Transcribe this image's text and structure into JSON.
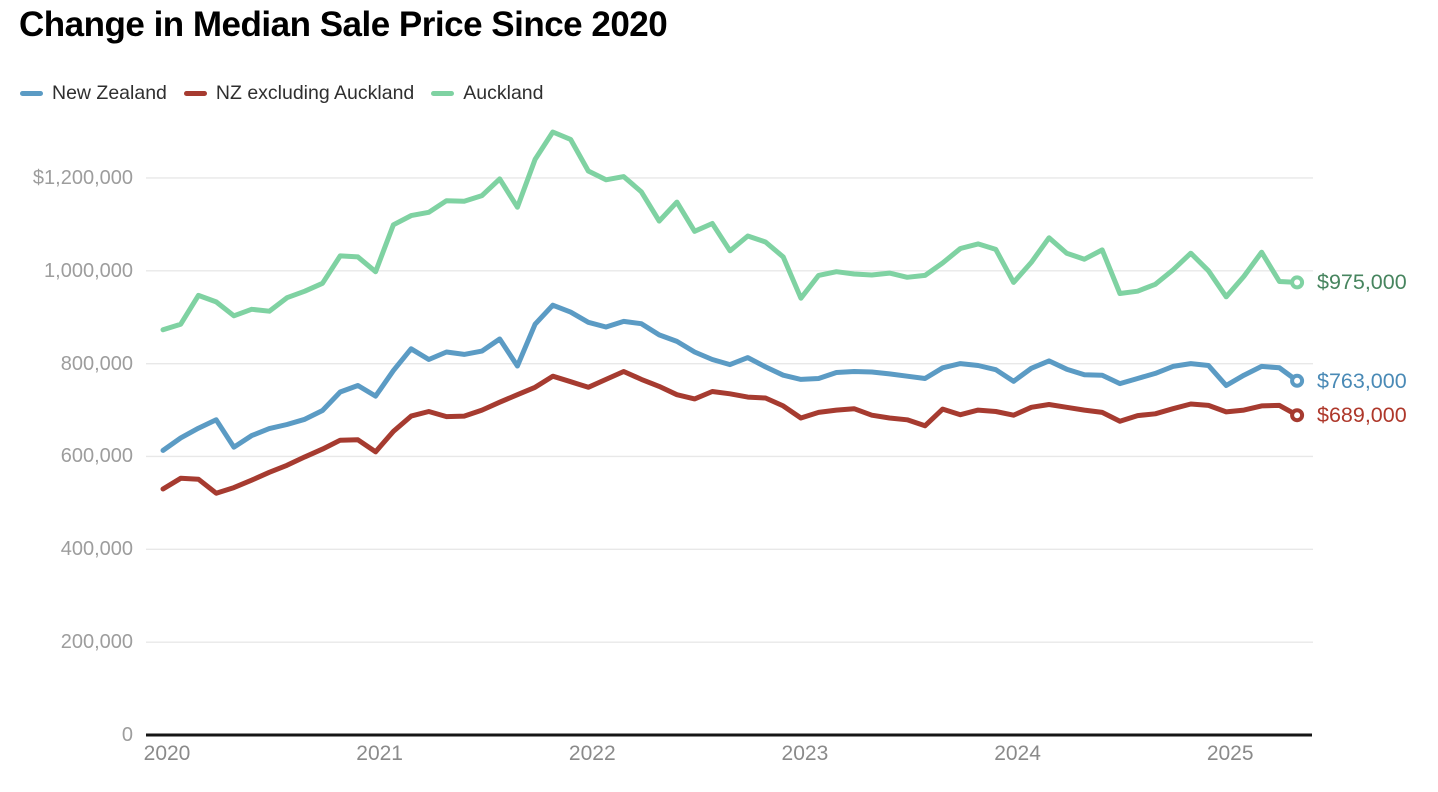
{
  "page": {
    "title": "Change in Median Sale Price Since 2020"
  },
  "legend": {
    "items": [
      {
        "label": "New Zealand",
        "color": "#5b9bc4"
      },
      {
        "label": "NZ excluding Auckland",
        "color": "#a63b30"
      },
      {
        "label": "Auckland",
        "color": "#7fd2a2"
      }
    ]
  },
  "chart_data": {
    "type": "line",
    "title": "Change in Median Sale Price Since 2020",
    "xlabel": "",
    "ylabel": "",
    "unit": "NZD",
    "grid": "horizontal",
    "legend_position": "top-left",
    "ylim": [
      0,
      1300000
    ],
    "x_axis": {
      "tick_labels": [
        "2020",
        "2021",
        "2022",
        "2023",
        "2024",
        "2025"
      ]
    },
    "y_axis": {
      "tick_values": [
        0,
        200000,
        400000,
        600000,
        800000,
        1000000,
        1200000
      ],
      "tick_labels": [
        "0",
        "200,000",
        "400,000",
        "600,000",
        "800,000",
        "1,000,000",
        "$1,200,000"
      ]
    },
    "months": [
      "2020-01",
      "2020-02",
      "2020-03",
      "2020-04",
      "2020-05",
      "2020-06",
      "2020-07",
      "2020-08",
      "2020-09",
      "2020-10",
      "2020-11",
      "2020-12",
      "2021-01",
      "2021-02",
      "2021-03",
      "2021-04",
      "2021-05",
      "2021-06",
      "2021-07",
      "2021-08",
      "2021-09",
      "2021-10",
      "2021-11",
      "2021-12",
      "2022-01",
      "2022-02",
      "2022-03",
      "2022-04",
      "2022-05",
      "2022-06",
      "2022-07",
      "2022-08",
      "2022-09",
      "2022-10",
      "2022-11",
      "2022-12",
      "2023-01",
      "2023-02",
      "2023-03",
      "2023-04",
      "2023-05",
      "2023-06",
      "2023-07",
      "2023-08",
      "2023-09",
      "2023-10",
      "2023-11",
      "2023-12",
      "2024-01",
      "2024-02",
      "2024-03",
      "2024-04",
      "2024-05",
      "2024-06",
      "2024-07",
      "2024-08",
      "2024-09",
      "2024-10",
      "2024-11",
      "2024-12",
      "2025-01",
      "2025-02",
      "2025-03",
      "2025-04",
      "2025-05"
    ],
    "series": [
      {
        "name": "New Zealand",
        "color": "#5b9bc4",
        "end_label": "$763,000",
        "end_label_color": "#4a8ab6",
        "values": [
          613000,
          640000,
          661000,
          679000,
          620000,
          645000,
          660000,
          669000,
          680000,
          699000,
          739000,
          753000,
          730000,
          785000,
          832000,
          809000,
          825000,
          820000,
          827000,
          853000,
          795000,
          885000,
          926000,
          911000,
          889000,
          879000,
          891000,
          886000,
          862000,
          848000,
          825000,
          809000,
          798000,
          813000,
          793000,
          775000,
          766000,
          768000,
          781000,
          783000,
          782000,
          778000,
          773000,
          768000,
          791000,
          800000,
          796000,
          787000,
          762000,
          790000,
          806000,
          788000,
          776000,
          775000,
          757000,
          768000,
          779000,
          794000,
          800000,
          796000,
          753000,
          775000,
          794000,
          791000,
          763000
        ]
      },
      {
        "name": "NZ excluding Auckland",
        "color": "#a63b30",
        "end_label": "$689,000",
        "end_label_color": "#ae382b",
        "values": [
          530000,
          553000,
          551000,
          521000,
          533000,
          549000,
          566000,
          581000,
          599000,
          616000,
          635000,
          636000,
          610000,
          654000,
          687000,
          697000,
          686000,
          687000,
          700000,
          717000,
          733000,
          749000,
          773000,
          761000,
          749000,
          766000,
          783000,
          766000,
          751000,
          733000,
          724000,
          740000,
          735000,
          728000,
          726000,
          709000,
          683000,
          695000,
          700000,
          703000,
          689000,
          683000,
          679000,
          666000,
          702000,
          690000,
          700000,
          697000,
          689000,
          706000,
          712000,
          706000,
          700000,
          695000,
          676000,
          688000,
          692000,
          703000,
          713000,
          710000,
          696000,
          700000,
          709000,
          710000,
          689000
        ]
      },
      {
        "name": "Auckland",
        "color": "#7fd2a2",
        "end_label": "$975,000",
        "end_label_color": "#47855f",
        "values": [
          873000,
          885000,
          947000,
          933000,
          903000,
          917000,
          913000,
          942000,
          956000,
          973000,
          1032000,
          1030000,
          998000,
          1099000,
          1119000,
          1126000,
          1151000,
          1150000,
          1162000,
          1198000,
          1137000,
          1240000,
          1299000,
          1283000,
          1215000,
          1196000,
          1203000,
          1170000,
          1107000,
          1148000,
          1085000,
          1102000,
          1043000,
          1075000,
          1062000,
          1030000,
          941000,
          990000,
          998000,
          993000,
          991000,
          995000,
          986000,
          990000,
          1017000,
          1048000,
          1058000,
          1046000,
          975000,
          1018000,
          1071000,
          1038000,
          1025000,
          1045000,
          951000,
          956000,
          971000,
          1002000,
          1038000,
          1000000,
          944000,
          988000,
          1040000,
          977000,
          975000
        ]
      }
    ]
  }
}
